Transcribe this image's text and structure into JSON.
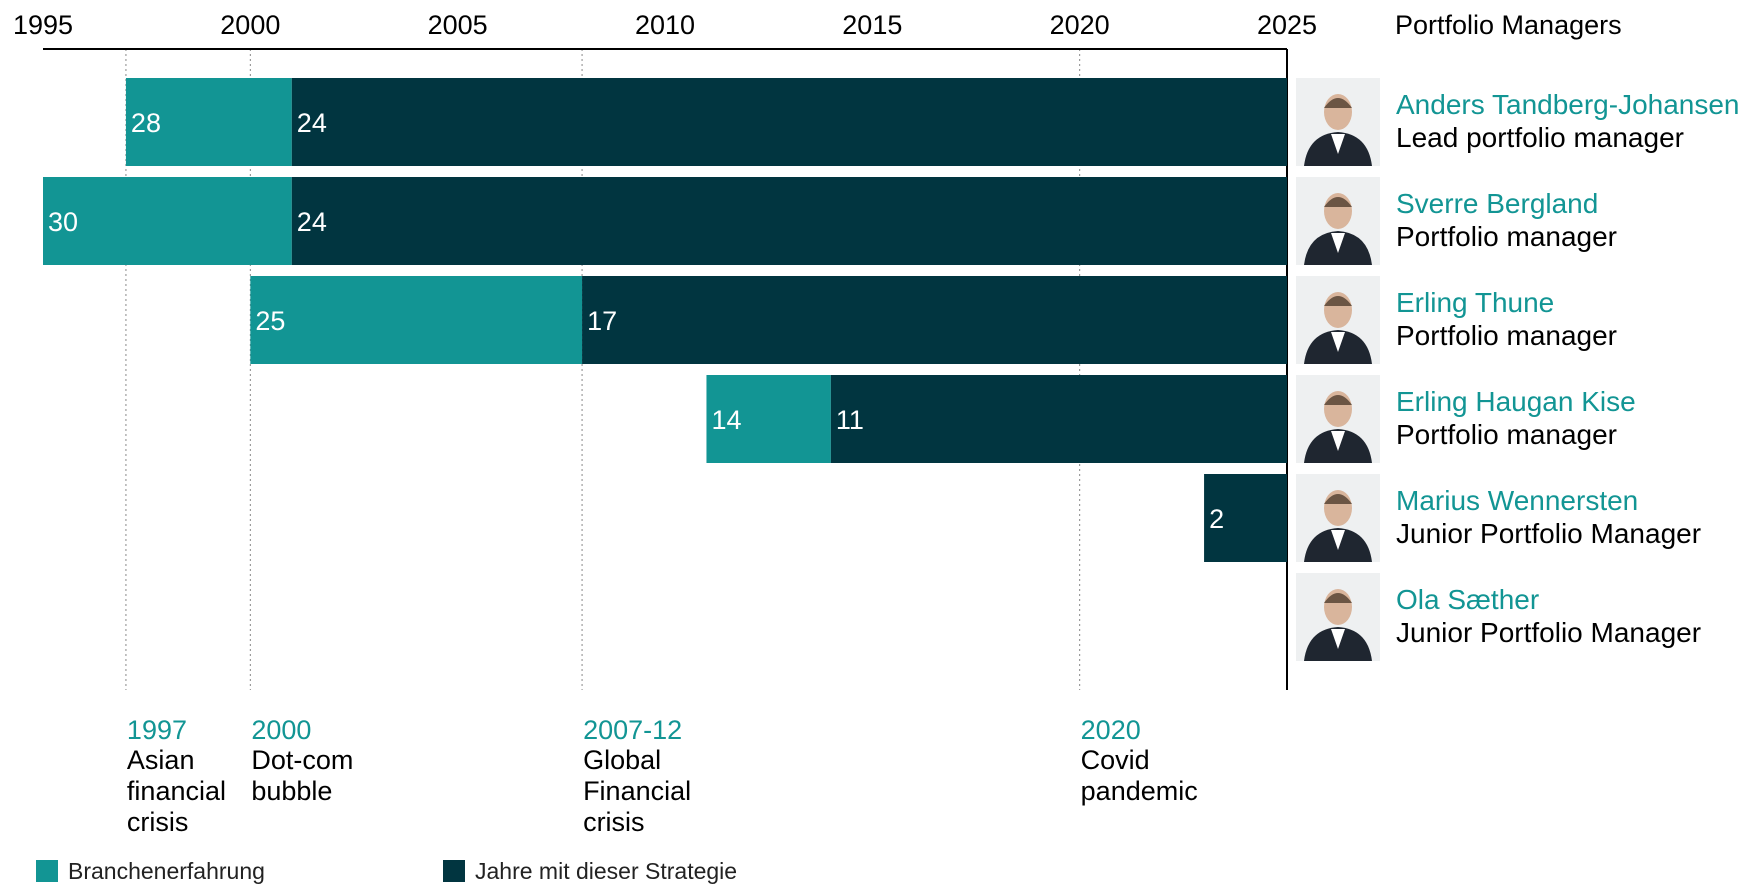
{
  "chart_data": {
    "type": "bar",
    "orientation": "horizontal-stacked-timeline",
    "x_ticks": [
      1995,
      2000,
      2005,
      2010,
      2015,
      2020,
      2025
    ],
    "xlim": [
      1995,
      2025
    ],
    "header": "Portfolio Managers",
    "series": [
      {
        "name": "Branchenerfahrung",
        "color": "#129594"
      },
      {
        "name": "Jahre mit dieser Strategie",
        "color": "#013540"
      }
    ],
    "managers": [
      {
        "name": "Anders Tandberg-Johansen",
        "role": "Lead portfolio manager",
        "industry_start": 1997,
        "strategy_start": 2001,
        "industry_label": "28",
        "strategy_label": "24"
      },
      {
        "name": "Sverre Bergland",
        "role": "Portfolio manager",
        "industry_start": 1995,
        "strategy_start": 2001,
        "industry_label": "30",
        "strategy_label": "24"
      },
      {
        "name": "Erling Thune",
        "role": "Portfolio manager",
        "industry_start": 2000,
        "strategy_start": 2008,
        "industry_label": "25",
        "strategy_label": "17"
      },
      {
        "name": "Erling Haugan Kise",
        "role": "Portfolio manager",
        "industry_start": 2011,
        "strategy_start": 2014,
        "industry_label": "14",
        "strategy_label": "11"
      },
      {
        "name": "Marius Wennersten",
        "role": "Junior Portfolio Manager",
        "industry_start": null,
        "strategy_start": 2023,
        "industry_label": "",
        "strategy_label": "2"
      },
      {
        "name": "Ola Sæther",
        "role": "Junior Portfolio Manager",
        "industry_start": null,
        "strategy_start": null,
        "industry_label": "",
        "strategy_label": ""
      }
    ],
    "events": [
      {
        "year": 1997,
        "label": "1997",
        "lines": [
          "Asian",
          "financial",
          "crisis"
        ]
      },
      {
        "year": 2000,
        "label": "2000",
        "lines": [
          "Dot-com",
          "bubble"
        ]
      },
      {
        "year": 2008,
        "label": "2007-12",
        "lines": [
          "Global",
          "Financial",
          "crisis"
        ]
      },
      {
        "year": 2020,
        "label": "2020",
        "lines": [
          "Covid",
          "pandemic"
        ]
      }
    ]
  }
}
